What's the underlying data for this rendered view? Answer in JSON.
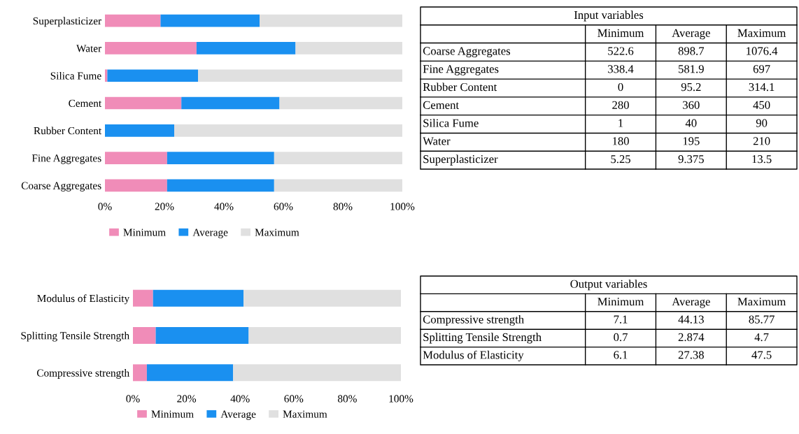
{
  "chart_data": [
    {
      "type": "bar",
      "orientation": "horizontal",
      "stacked": true,
      "categories": [
        "Superplasticizer",
        "Water",
        "Silica Fume",
        "Cement",
        "Rubber Content",
        "Fine Aggregates",
        "Coarse Aggregates"
      ],
      "series": [
        {
          "name": "Minimum",
          "color": "#f08cb8",
          "values": [
            18.7,
            30.8,
            0.8,
            25.7,
            0,
            20.9,
            20.9
          ]
        },
        {
          "name": "Average",
          "color": "#1a90f0",
          "values": [
            33.3,
            33.3,
            30.5,
            33.0,
            23.3,
            36.0,
            36.0
          ]
        },
        {
          "name": "Maximum",
          "color": "#e0e0e0",
          "values": [
            48.0,
            35.9,
            68.7,
            41.3,
            76.7,
            43.1,
            43.1
          ]
        }
      ],
      "xlim": [
        0,
        100
      ],
      "xticks": [
        {
          "value": 0,
          "label": "0%"
        },
        {
          "value": 20,
          "label": "20%"
        },
        {
          "value": 40,
          "label": "40%"
        },
        {
          "value": 60,
          "label": "60%"
        },
        {
          "value": 80,
          "label": "80%"
        },
        {
          "value": 100,
          "label": "100%"
        }
      ],
      "legend": "bottom"
    },
    {
      "type": "other",
      "title": "Input variables",
      "categories": [
        "Coarse Aggregates",
        "Fine Aggregates",
        "Rubber Content",
        "Cement",
        "Silica Fume",
        "Water",
        "Superplasticizer"
      ],
      "series": [
        {
          "name": "Minimum",
          "values": [
            522.6,
            338.4,
            0,
            280,
            1,
            180,
            5.25
          ]
        },
        {
          "name": "Average",
          "values": [
            898.7,
            581.9,
            95.2,
            360,
            40,
            195,
            9.375
          ]
        },
        {
          "name": "Maximum",
          "values": [
            1076.4,
            697,
            314.1,
            450,
            90,
            210,
            13.5
          ]
        }
      ],
      "data_labels": true
    },
    {
      "type": "bar",
      "orientation": "horizontal",
      "stacked": true,
      "categories": [
        "Modulus of Elasticity",
        "Splitting Tensile Strength",
        "Compressive strength"
      ],
      "series": [
        {
          "name": "Minimum",
          "color": "#f08cb8",
          "values": [
            7.5,
            8.5,
            5.2
          ]
        },
        {
          "name": "Average",
          "color": "#1a90f0",
          "values": [
            33.8,
            34.7,
            32.2
          ]
        },
        {
          "name": "Maximum",
          "color": "#e0e0e0",
          "values": [
            58.7,
            56.8,
            62.6
          ]
        }
      ],
      "xlim": [
        0,
        100
      ],
      "xticks": [
        {
          "value": 0,
          "label": "0%"
        },
        {
          "value": 20,
          "label": "20%"
        },
        {
          "value": 40,
          "label": "40%"
        },
        {
          "value": 60,
          "label": "60%"
        },
        {
          "value": 80,
          "label": "80%"
        },
        {
          "value": 100,
          "label": "100%"
        }
      ],
      "legend": "bottom"
    },
    {
      "type": "other",
      "title": "Output variables",
      "categories": [
        "Compressive strength",
        "Splitting Tensile Strength",
        "Modulus of Elasticity"
      ],
      "series": [
        {
          "name": "Minimum",
          "values": [
            7.1,
            0.7,
            6.1
          ]
        },
        {
          "name": "Average",
          "values": [
            44.13,
            2.874,
            27.38
          ]
        },
        {
          "name": "Maximum",
          "values": [
            85.77,
            4.7,
            47.5
          ]
        }
      ],
      "data_labels": true
    }
  ]
}
